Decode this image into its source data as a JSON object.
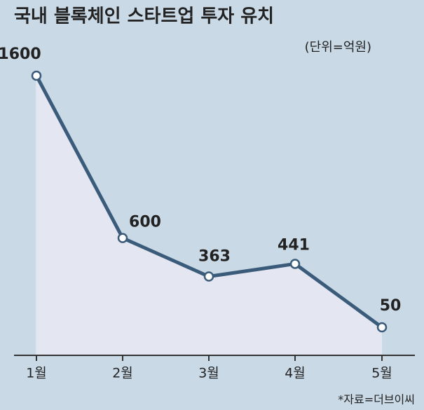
{
  "chart_data": {
    "type": "line",
    "title": "국내 블록체인 스타트업 투자 유치",
    "subtitle": "(단위=억원)",
    "source": "*자료=더브이씨",
    "categories": [
      "1월",
      "2월",
      "3월",
      "4월",
      "5월"
    ],
    "values": [
      1600,
      600,
      363,
      441,
      50
    ],
    "color": "#3b5b7a",
    "area_color": "#e4e7f2"
  }
}
